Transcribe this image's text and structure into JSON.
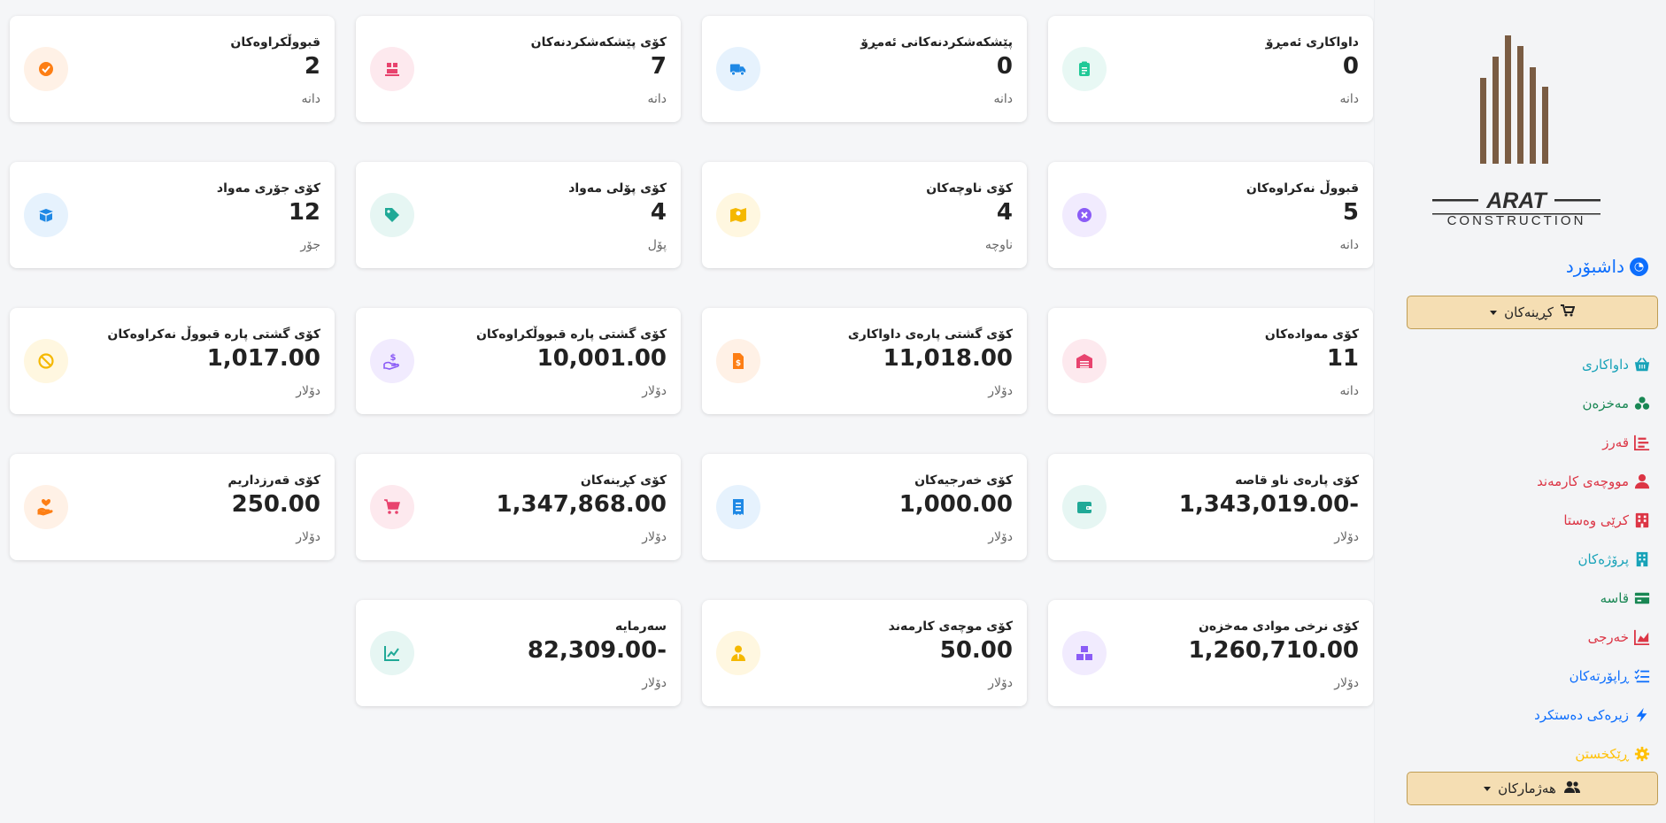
{
  "sidebar": {
    "logo_text": "ARAT",
    "logo_subtext": "CONSTRUCTION",
    "dashboard_label": "داشبۆرد",
    "purchases_dropdown": "کڕینەکان",
    "nav_items": [
      {
        "label": "داواکاری",
        "color": "#17a2b8",
        "icon": "basket-icon"
      },
      {
        "label": "مەخزەن",
        "color": "#198754",
        "icon": "boxes-icon"
      },
      {
        "label": "قەرز",
        "color": "#dc3545",
        "icon": "ledger-icon"
      },
      {
        "label": "مووچەی کارمەند",
        "color": "#dc3545",
        "icon": "user-icon"
      },
      {
        "label": "کرێی وەستا",
        "color": "#dc3545",
        "icon": "building-icon"
      },
      {
        "label": "پرۆژەکان",
        "color": "#17a2b8",
        "icon": "project-icon"
      },
      {
        "label": "قاسە",
        "color": "#198754",
        "icon": "cashbox-icon"
      },
      {
        "label": "خەرجی",
        "color": "#dc3545",
        "icon": "chart-area-icon"
      },
      {
        "label": "ڕاپۆرتەکان",
        "color": "#0d6efd",
        "icon": "list-icon"
      },
      {
        "label": "زیرەکی دەستکرد",
        "color": "#0d6efd",
        "icon": "bolt-icon"
      },
      {
        "label": "ڕێکخستن",
        "color": "#ffc107",
        "icon": "gear-icon"
      }
    ],
    "accounts_dropdown": "هەژمارکان"
  },
  "cards": [
    {
      "label": "داواکاری ئەمڕۆ",
      "value": "0",
      "unit": "دانە",
      "icon": "clipboard-icon",
      "color": "#20c997",
      "bg": "#e8f8f4"
    },
    {
      "label": "پێشکەشکردنەکانی ئەمڕۆ",
      "value": "0",
      "unit": "دانە",
      "icon": "truck-icon",
      "color": "#1e88e5",
      "bg": "#e6f2fd"
    },
    {
      "label": "کۆی پێشکەشکردنەکان",
      "value": "7",
      "unit": "دانە",
      "icon": "dolly-icon",
      "color": "#e8436e",
      "bg": "#fde9ee"
    },
    {
      "label": "قبووڵکراوەکان",
      "value": "2",
      "unit": "دانە",
      "icon": "check-circle-icon",
      "color": "#fd7e14",
      "bg": "#fff1e6"
    },
    {
      "label": "قبووڵ نەکراوەکان",
      "value": "5",
      "unit": "دانە",
      "icon": "x-circle-icon",
      "color": "#8b5cf6",
      "bg": "#f1ebfe"
    },
    {
      "label": "کۆی ناوچەکان",
      "value": "4",
      "unit": "ناوچە",
      "icon": "map-icon",
      "color": "#f5b800",
      "bg": "#fff7e0"
    },
    {
      "label": "کۆی پۆلی مەواد",
      "value": "4",
      "unit": "پۆل",
      "icon": "tags-icon",
      "color": "#20a997",
      "bg": "#e6f6f3"
    },
    {
      "label": "کۆی جۆری مەواد",
      "value": "12",
      "unit": "جۆر",
      "icon": "box-open-icon",
      "color": "#1e88e5",
      "bg": "#e6f2fd"
    },
    {
      "label": "کۆی مەوادەکان",
      "value": "11",
      "unit": "دانە",
      "icon": "warehouse-icon",
      "color": "#e8436e",
      "bg": "#fde9ee"
    },
    {
      "label": "کۆی گشتی پارەی داواکاری",
      "value": "11,018.00",
      "unit": "دۆلار",
      "icon": "invoice-dollar-icon",
      "color": "#fd7e14",
      "bg": "#fff1e6"
    },
    {
      "label": "کۆی گشتی پارە قبووڵکراوەکان",
      "value": "10,001.00",
      "unit": "دۆلار",
      "icon": "hand-dollar-icon",
      "color": "#8b5cf6",
      "bg": "#f1ebfe"
    },
    {
      "label": "کۆی گشتی پارە قبووڵ نەکراوەکان",
      "value": "1,017.00",
      "unit": "دۆلار",
      "icon": "ban-icon",
      "color": "#f5b800",
      "bg": "#fff7e0"
    },
    {
      "label": "کۆی پارەی ناو قاصە",
      "value": "1,343,019.00-",
      "unit": "دۆلار",
      "icon": "wallet-icon",
      "color": "#20a997",
      "bg": "#e6f6f3"
    },
    {
      "label": "کۆی خەرجیەکان",
      "value": "1,000.00",
      "unit": "دۆلار",
      "icon": "receipt-icon",
      "color": "#1e88e5",
      "bg": "#e6f2fd"
    },
    {
      "label": "کۆی کڕینەکان",
      "value": "1,347,868.00",
      "unit": "دۆلار",
      "icon": "cart-icon",
      "color": "#e8436e",
      "bg": "#fde9ee"
    },
    {
      "label": "کۆی قەرزداریم",
      "value": "250.00",
      "unit": "دۆلار",
      "icon": "hand-heart-icon",
      "color": "#fd7e14",
      "bg": "#fff1e6"
    },
    {
      "label": "کۆی نرخی موادی مەخزەن",
      "value": "1,260,710.00",
      "unit": "دۆلار",
      "icon": "boxes-stack-icon",
      "color": "#8b5cf6",
      "bg": "#f1ebfe"
    },
    {
      "label": "کۆی موچەی کارمەند",
      "value": "50.00",
      "unit": "دۆلار",
      "icon": "user-tie-icon",
      "color": "#f5b800",
      "bg": "#fff7e0"
    },
    {
      "label": "سەرمایە",
      "value": "82,309.00-",
      "unit": "دۆلار",
      "icon": "line-chart-icon",
      "color": "#20a997",
      "bg": "#e6f6f3"
    }
  ]
}
